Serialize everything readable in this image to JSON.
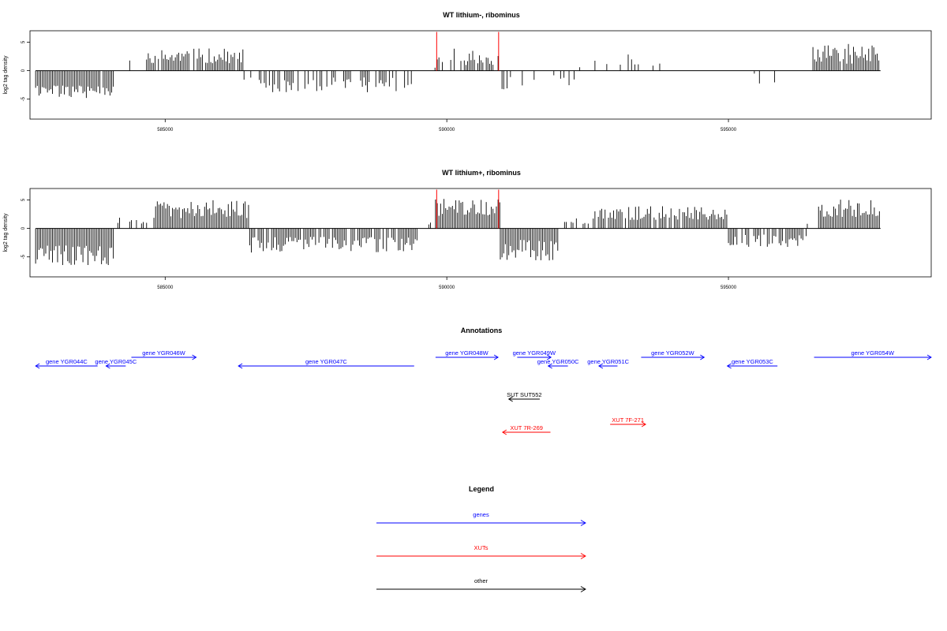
{
  "colors": {
    "genes": "#0000ff",
    "xuts": "#ff0000",
    "other": "#000000",
    "signal": "#000000",
    "marker": "#ff0000"
  },
  "chart_data": [
    {
      "type": "bar",
      "title": "WT lithium-, ribominus",
      "ylabel": "log2 tag density",
      "xlim": [
        582600,
        598600
      ],
      "ylim": [
        -8.5,
        7
      ],
      "x_ticks": [
        585000,
        590000,
        595000
      ],
      "x_tick_labels": [
        "585000",
        "590000",
        "595000"
      ],
      "y_ticks": [
        -5,
        0,
        5
      ],
      "y_tick_labels": [
        "-5",
        "0",
        "5"
      ],
      "data_start": 582700,
      "data_end": 597700,
      "bin_size": 30,
      "red_markers": [
        589820,
        590920
      ],
      "marker_height": 6.8,
      "segments": [
        {
          "start": 582700,
          "end": 584100,
          "sign": -1,
          "base": 2.6,
          "amp": 2.2,
          "density": 0.98
        },
        {
          "start": 584100,
          "end": 584700,
          "sign": 1,
          "base": 0.8,
          "amp": 1.6,
          "density": 0.12
        },
        {
          "start": 584700,
          "end": 586400,
          "sign": 1,
          "base": 1.3,
          "amp": 2.6,
          "density": 0.8
        },
        {
          "start": 586400,
          "end": 589400,
          "sign": -1,
          "base": 1.2,
          "amp": 2.6,
          "density": 0.55
        },
        {
          "start": 589400,
          "end": 589800,
          "sign": 1,
          "base": 0.4,
          "amp": 1.2,
          "density": 0.08
        },
        {
          "start": 589800,
          "end": 590950,
          "sign": 1,
          "base": 1.0,
          "amp": 3.0,
          "density": 0.55
        },
        {
          "start": 590950,
          "end": 591600,
          "sign": -1,
          "base": 0.8,
          "amp": 2.6,
          "density": 0.35
        },
        {
          "start": 591600,
          "end": 592300,
          "sign": -1,
          "base": 0.8,
          "amp": 1.8,
          "density": 0.3
        },
        {
          "start": 592300,
          "end": 593100,
          "sign": 1,
          "base": 0.4,
          "amp": 1.6,
          "density": 0.15
        },
        {
          "start": 593100,
          "end": 593600,
          "sign": 1,
          "base": 1.0,
          "amp": 2.8,
          "density": 0.4
        },
        {
          "start": 593600,
          "end": 594500,
          "sign": 1,
          "base": 0.5,
          "amp": 1.8,
          "density": 0.12
        },
        {
          "start": 594500,
          "end": 596100,
          "sign": -1,
          "base": 0.5,
          "amp": 2.2,
          "density": 0.12
        },
        {
          "start": 596100,
          "end": 596500,
          "sign": 1,
          "base": 0.3,
          "amp": 0.8,
          "density": 0.05
        },
        {
          "start": 596500,
          "end": 597700,
          "sign": 1,
          "base": 1.2,
          "amp": 3.6,
          "density": 0.98
        }
      ]
    },
    {
      "type": "bar",
      "title": "WT lithium+, ribominus",
      "ylabel": "log2 tag density",
      "xlim": [
        582600,
        598600
      ],
      "ylim": [
        -8.5,
        7
      ],
      "x_ticks": [
        585000,
        590000,
        595000
      ],
      "x_tick_labels": [
        "585000",
        "590000",
        "595000"
      ],
      "y_ticks": [
        -5,
        0,
        5
      ],
      "y_tick_labels": [
        "-5",
        "0",
        "5"
      ],
      "data_start": 582700,
      "data_end": 597700,
      "bin_size": 30,
      "red_markers": [
        589820,
        590920
      ],
      "marker_height": 6.8,
      "segments": [
        {
          "start": 582700,
          "end": 584100,
          "sign": -1,
          "base": 3.0,
          "amp": 3.6,
          "density": 1.0
        },
        {
          "start": 584100,
          "end": 584800,
          "sign": 1,
          "base": 0.8,
          "amp": 1.6,
          "density": 0.35
        },
        {
          "start": 584800,
          "end": 586500,
          "sign": 1,
          "base": 1.8,
          "amp": 3.2,
          "density": 0.98
        },
        {
          "start": 586500,
          "end": 589500,
          "sign": -1,
          "base": 1.5,
          "amp": 2.8,
          "density": 0.85
        },
        {
          "start": 589500,
          "end": 589800,
          "sign": 1,
          "base": 0.5,
          "amp": 1.2,
          "density": 0.3
        },
        {
          "start": 589800,
          "end": 590950,
          "sign": 1,
          "base": 2.2,
          "amp": 3.2,
          "density": 1.0
        },
        {
          "start": 590950,
          "end": 592000,
          "sign": -1,
          "base": 2.0,
          "amp": 4.0,
          "density": 1.0
        },
        {
          "start": 592000,
          "end": 592600,
          "sign": 1,
          "base": 0.8,
          "amp": 2.0,
          "density": 0.5
        },
        {
          "start": 592600,
          "end": 595000,
          "sign": 1,
          "base": 1.5,
          "amp": 2.6,
          "density": 0.9
        },
        {
          "start": 595000,
          "end": 596400,
          "sign": -1,
          "base": 1.0,
          "amp": 2.4,
          "density": 0.75
        },
        {
          "start": 596400,
          "end": 596600,
          "sign": 1,
          "base": 0.8,
          "amp": 1.4,
          "density": 0.4
        },
        {
          "start": 596600,
          "end": 597700,
          "sign": 1,
          "base": 2.0,
          "amp": 3.2,
          "density": 1.0
        }
      ]
    }
  ],
  "annotations": {
    "title": "Annotations",
    "xlim": [
      582600,
      598600
    ],
    "features": [
      {
        "label": "gene YGR044C",
        "kind": "genes",
        "strand": "-",
        "row": 1,
        "start": 582700,
        "end": 583800
      },
      {
        "label": "gene YGR045C",
        "kind": "genes",
        "strand": "-",
        "row": 1,
        "start": 583950,
        "end": 584300
      },
      {
        "label": "gene YGR046W",
        "kind": "genes",
        "strand": "+",
        "row": 0,
        "start": 584400,
        "end": 585550
      },
      {
        "label": "gene YGR047C",
        "kind": "genes",
        "strand": "-",
        "row": 1,
        "start": 586300,
        "end": 589420
      },
      {
        "label": "gene YGR048W",
        "kind": "genes",
        "strand": "+",
        "row": 0,
        "start": 589800,
        "end": 590910
      },
      {
        "label": "gene YGR049W",
        "kind": "genes",
        "strand": "+",
        "row": 0,
        "start": 591250,
        "end": 591850
      },
      {
        "label": "gene YGR050C",
        "kind": "genes",
        "strand": "-",
        "row": 1,
        "start": 591800,
        "end": 592150
      },
      {
        "label": "gene YGR051C",
        "kind": "genes",
        "strand": "-",
        "row": 1,
        "start": 592700,
        "end": 593030
      },
      {
        "label": "gene YGR052W",
        "kind": "genes",
        "strand": "+",
        "row": 0,
        "start": 593450,
        "end": 594570
      },
      {
        "label": "gene YGR053C",
        "kind": "genes",
        "strand": "-",
        "row": 1,
        "start": 594980,
        "end": 595870
      },
      {
        "label": "gene YGR054W",
        "kind": "genes",
        "strand": "+",
        "row": 0,
        "start": 596520,
        "end": 598600
      },
      {
        "label": "SUT SUT552",
        "kind": "other",
        "strand": "-",
        "row": 2,
        "start": 591100,
        "end": 591650
      },
      {
        "label": "XUT 7F-271",
        "kind": "xuts",
        "strand": "+",
        "row": 3,
        "start": 592900,
        "end": 593530
      },
      {
        "label": "XUT 7R-269",
        "kind": "xuts",
        "strand": "-",
        "row": 4,
        "start": 590990,
        "end": 591840
      }
    ]
  },
  "legend": {
    "title": "Legend",
    "items": [
      {
        "label": "genes",
        "kind": "genes"
      },
      {
        "label": "XUTs",
        "kind": "xuts"
      },
      {
        "label": "other",
        "kind": "other"
      }
    ]
  }
}
